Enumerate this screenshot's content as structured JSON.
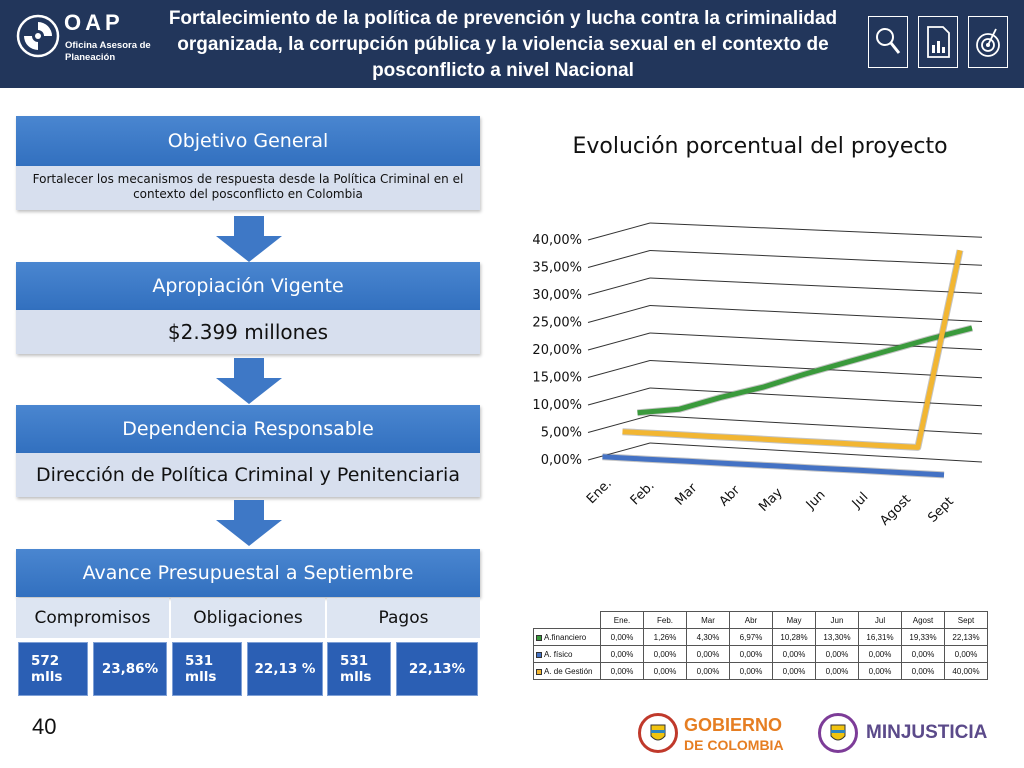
{
  "header": {
    "brand": "OAP",
    "brand_sub": "Oficina Asesora de Planeación",
    "title": "Fortalecimiento de la política de prevención y lucha contra la criminalidad organizada, la corrupción pública y la violencia sexual en el contexto de posconflicto a nivel Nacional",
    "icons": [
      "magnifier-icon",
      "report-icon",
      "target-icon"
    ]
  },
  "flow": {
    "objetivo": {
      "title": "Objetivo General",
      "text": "Fortalecer los mecanismos de respuesta desde la Política Criminal en el contexto del posconflicto en Colombia"
    },
    "apropiacion": {
      "title": "Apropiación Vigente",
      "value": "$2.399 millones"
    },
    "dependencia": {
      "title": "Dependencia Responsable",
      "value": "Dirección de Política Criminal y Penitenciaria"
    },
    "avance": {
      "title": "Avance Presupuestal a Septiembre",
      "columns": [
        {
          "label": "Compromisos",
          "amount": "572 mlls",
          "percent": "23,86%"
        },
        {
          "label": "Obligaciones",
          "amount": "531 mlls",
          "percent": "22,13 %"
        },
        {
          "label": "Pagos",
          "amount": "531 mlls",
          "percent": "22,13%"
        }
      ]
    }
  },
  "chart_data": {
    "type": "line",
    "title": "Evolución porcentual del proyecto",
    "categories": [
      "Ene.",
      "Feb.",
      "Mar",
      "Abr",
      "May",
      "Jun",
      "Jul",
      "Agost",
      "Sept"
    ],
    "y_ticks": [
      "0,00%",
      "5,00%",
      "10,00%",
      "15,00%",
      "20,00%",
      "25,00%",
      "30,00%",
      "35,00%",
      "40,00%"
    ],
    "ylim": [
      0,
      40
    ],
    "grid": true,
    "series": [
      {
        "name": "A.financiero",
        "color": "#3a9a3c",
        "values": [
          0,
          1.26,
          4.3,
          6.97,
          10.28,
          13.3,
          16.31,
          19.33,
          22.13
        ],
        "labels": [
          "0,00%",
          "1,26%",
          "4,30%",
          "6,97%",
          "10,28%",
          "13,30%",
          "16,31%",
          "19,33%",
          "22,13%"
        ]
      },
      {
        "name": "A. físico",
        "color": "#4472c4",
        "values": [
          0,
          0,
          0,
          0,
          0,
          0,
          0,
          0,
          0
        ],
        "labels": [
          "0,00%",
          "0,00%",
          "0,00%",
          "0,00%",
          "0,00%",
          "0,00%",
          "0,00%",
          "0,00%",
          "0,00%"
        ]
      },
      {
        "name": "A. de Gestión",
        "color": "#f2b632",
        "values": [
          0,
          0,
          0,
          0,
          0,
          0,
          0,
          0,
          40
        ],
        "labels": [
          "0,00%",
          "0,00%",
          "0,00%",
          "0,00%",
          "0,00%",
          "0,00%",
          "0,00%",
          "0,00%",
          "40,00%"
        ]
      }
    ]
  },
  "footer": {
    "page_number": "40",
    "gobierno_line1": "GOBIERNO",
    "gobierno_line2": "DE COLOMBIA",
    "minjusticia": "MINJUSTICIA"
  }
}
